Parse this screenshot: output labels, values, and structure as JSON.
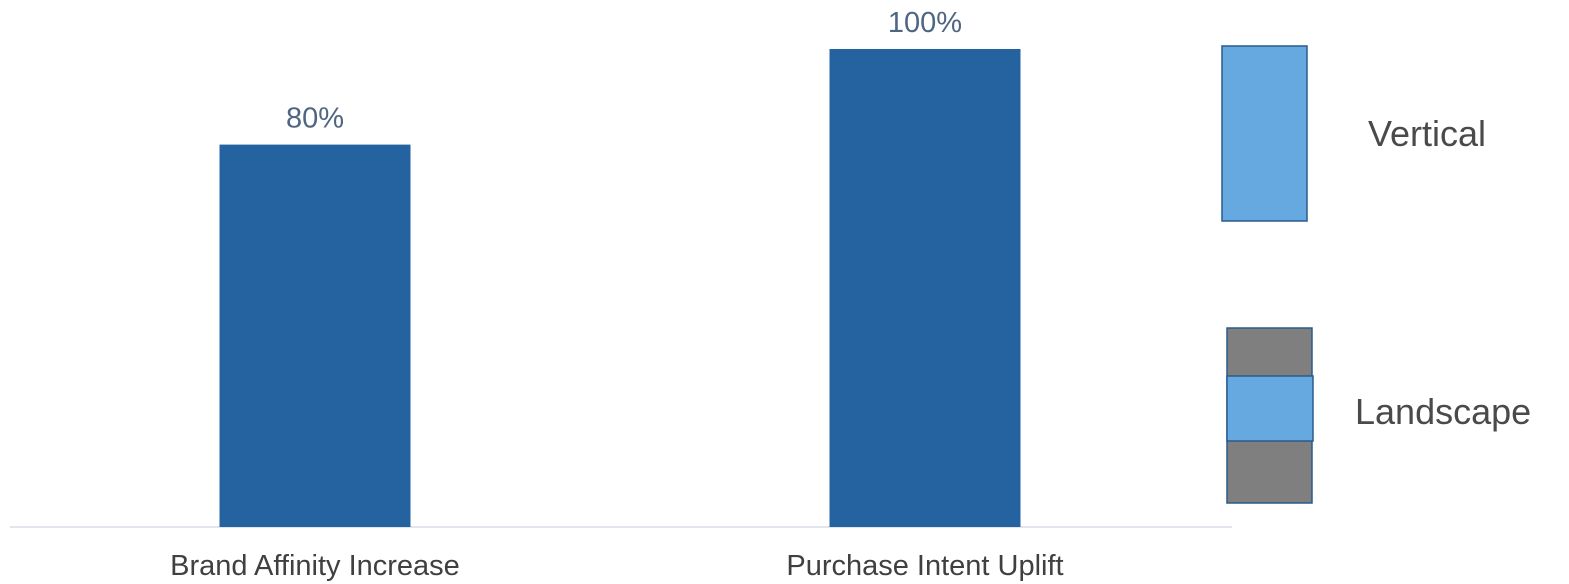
{
  "chart_data": {
    "type": "bar",
    "categories": [
      "Brand Affinity Increase",
      "Purchase Intent Uplift"
    ],
    "values": [
      80,
      100
    ],
    "value_labels": [
      "80%",
      "100%"
    ],
    "ylim": [
      0,
      100
    ],
    "grid": false,
    "bar_color": "#2462a0",
    "axis_color": "#d9dde6",
    "legend": {
      "placement": "right",
      "items": [
        {
          "label": "Vertical",
          "icon": "vertical-format-icon",
          "color": "#66a8e0"
        },
        {
          "label": "Landscape",
          "icon": "landscape-format-icon",
          "color": "#66a8e0",
          "frame_color": "#7f7f7f"
        }
      ]
    }
  }
}
